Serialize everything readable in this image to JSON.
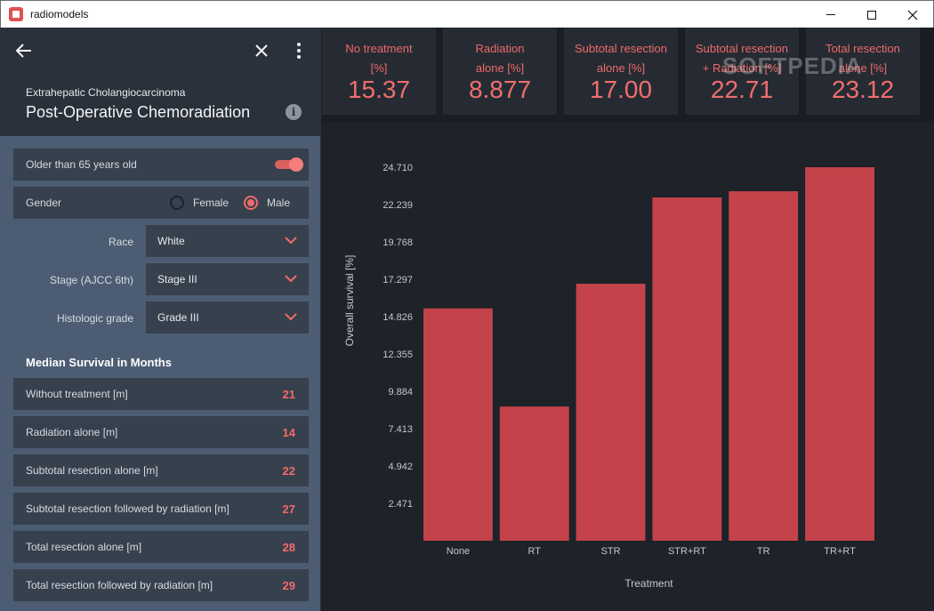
{
  "window": {
    "title": "radiomodels",
    "controls": {
      "minimize": "minimize-icon",
      "maximize": "maximize-icon",
      "close": "close-icon"
    }
  },
  "header": {
    "subtitle": "Extrahepatic Cholangiocarcinoma",
    "title": "Post-Operative Chemoradiation",
    "info_glyph": "i"
  },
  "inputs": {
    "age_toggle": {
      "label": "Older than 65 years old",
      "on": true
    },
    "gender": {
      "label": "Gender",
      "options": [
        "Female",
        "Male"
      ],
      "selected": "Male"
    },
    "race": {
      "label": "Race",
      "value": "White"
    },
    "stage": {
      "label": "Stage (AJCC 6th)",
      "value": "Stage III"
    },
    "grade": {
      "label": "Histologic grade",
      "value": "Grade III"
    }
  },
  "median": {
    "title": "Median Survival in Months",
    "rows": [
      {
        "label": "Without treatment [m]",
        "value": "21"
      },
      {
        "label": "Radiation alone [m]",
        "value": "14"
      },
      {
        "label": "Subtotal resection alone [m]",
        "value": "22"
      },
      {
        "label": "Subtotal resection followed by radiation [m]",
        "value": "27"
      },
      {
        "label": "Total resection alone [m]",
        "value": "28"
      },
      {
        "label": "Total resection followed by radiation [m]",
        "value": "29"
      }
    ]
  },
  "cards": [
    {
      "line1": "No treatment",
      "line2": "[%]",
      "value": "15.37"
    },
    {
      "line1": "Radiation",
      "line2": "alone [%]",
      "value": "8.877"
    },
    {
      "line1": "Subtotal resection",
      "line2": "alone [%]",
      "value": "17.00"
    },
    {
      "line1": "Subtotal resection",
      "line2": "+ Radiation [%]",
      "value": "22.71"
    },
    {
      "line1": "Total resection",
      "line2": "alone [%]",
      "value": "23.12"
    }
  ],
  "watermark": "SOFTPEDIA",
  "colors": {
    "accent": "#f06b6b",
    "bar": "#c4434a",
    "panel": "#4c5d73",
    "dark": "#1e2229"
  },
  "chart_data": {
    "type": "bar",
    "categories": [
      "None",
      "RT",
      "STR",
      "STR+RT",
      "TR",
      "TR+RT"
    ],
    "values": [
      15.37,
      8.877,
      17.0,
      22.71,
      23.12,
      24.71
    ],
    "yticks": [
      "2.471",
      "4.942",
      "7.413",
      "9.884",
      "12.355",
      "14.826",
      "17.297",
      "19.768",
      "22.239",
      "24.710"
    ],
    "ylim": [
      0,
      24.71
    ],
    "xlabel": "Treatment",
    "ylabel": "Overall survival [%]",
    "grid": false
  }
}
